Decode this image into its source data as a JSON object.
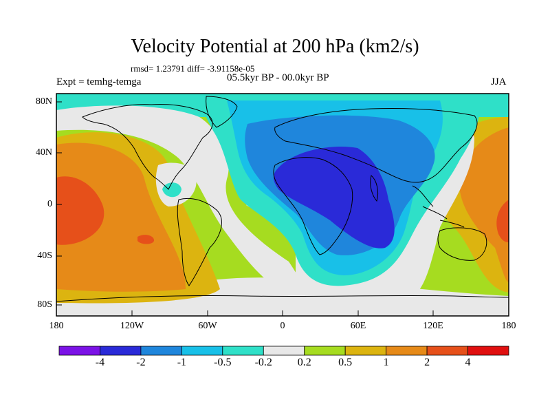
{
  "title": "Velocity Potential at 200 hPa (km2/s)",
  "stats": "rmsd= 1.23791 diff= -3.91158e-05",
  "left_label": "Expt = temhg-temga",
  "center_label": "05.5kyr BP - 00.0kyr BP",
  "right_label": "JJA",
  "lat_ticks": [
    "80N",
    "40N",
    "0",
    "40S",
    "80S"
  ],
  "lon_ticks": [
    "180",
    "120W",
    "60W",
    "0",
    "60E",
    "120E",
    "180"
  ],
  "colorbar": {
    "labels": [
      "-4",
      "-2",
      "-1",
      "-0.5",
      "-0.2",
      "0.2",
      "0.5",
      "1",
      "2",
      "4"
    ],
    "colors": [
      "#7b12e6",
      "#2a2ad8",
      "#1f86dc",
      "#18c0e8",
      "#2fe0c8",
      "#e8e8e8",
      "#a6dc20",
      "#dcb410",
      "#e68a18",
      "#e6501a",
      "#e01010"
    ]
  }
}
